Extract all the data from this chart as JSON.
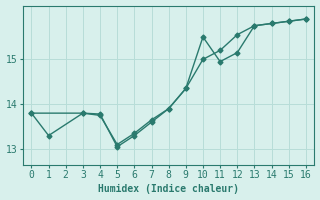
{
  "line1_x": [
    0,
    1,
    3,
    4,
    5,
    6,
    7,
    8,
    9,
    10,
    11,
    12,
    13,
    14,
    15,
    16
  ],
  "line1_y": [
    13.8,
    13.3,
    13.8,
    13.75,
    13.1,
    13.35,
    13.65,
    13.9,
    14.35,
    15.5,
    14.95,
    15.15,
    15.75,
    15.8,
    15.85,
    15.9
  ],
  "line2_x": [
    0,
    3,
    4,
    5,
    6,
    7,
    8,
    9,
    10,
    11,
    12,
    13,
    14,
    15,
    16
  ],
  "line2_y": [
    13.8,
    13.8,
    13.78,
    13.05,
    13.3,
    13.6,
    13.9,
    14.35,
    15.0,
    15.2,
    15.55,
    15.75,
    15.8,
    15.85,
    15.9
  ],
  "color": "#2a7a6e",
  "marker": "D",
  "markersize": 2.5,
  "linewidth": 1.0,
  "background_color": "#d8f0ec",
  "grid_color": "#b8ddd8",
  "xlabel": "Humidex (Indice chaleur)",
  "ylabel": "",
  "title": "",
  "xlim": [
    -0.5,
    16.5
  ],
  "ylim": [
    12.65,
    16.2
  ],
  "xticks": [
    0,
    1,
    2,
    3,
    4,
    5,
    6,
    7,
    8,
    9,
    10,
    11,
    12,
    13,
    14,
    15,
    16
  ],
  "yticks": [
    13,
    14,
    15
  ],
  "tick_color": "#2a7a6e",
  "axis_color": "#2a7a6e",
  "label_fontsize": 7,
  "tick_fontsize": 7
}
